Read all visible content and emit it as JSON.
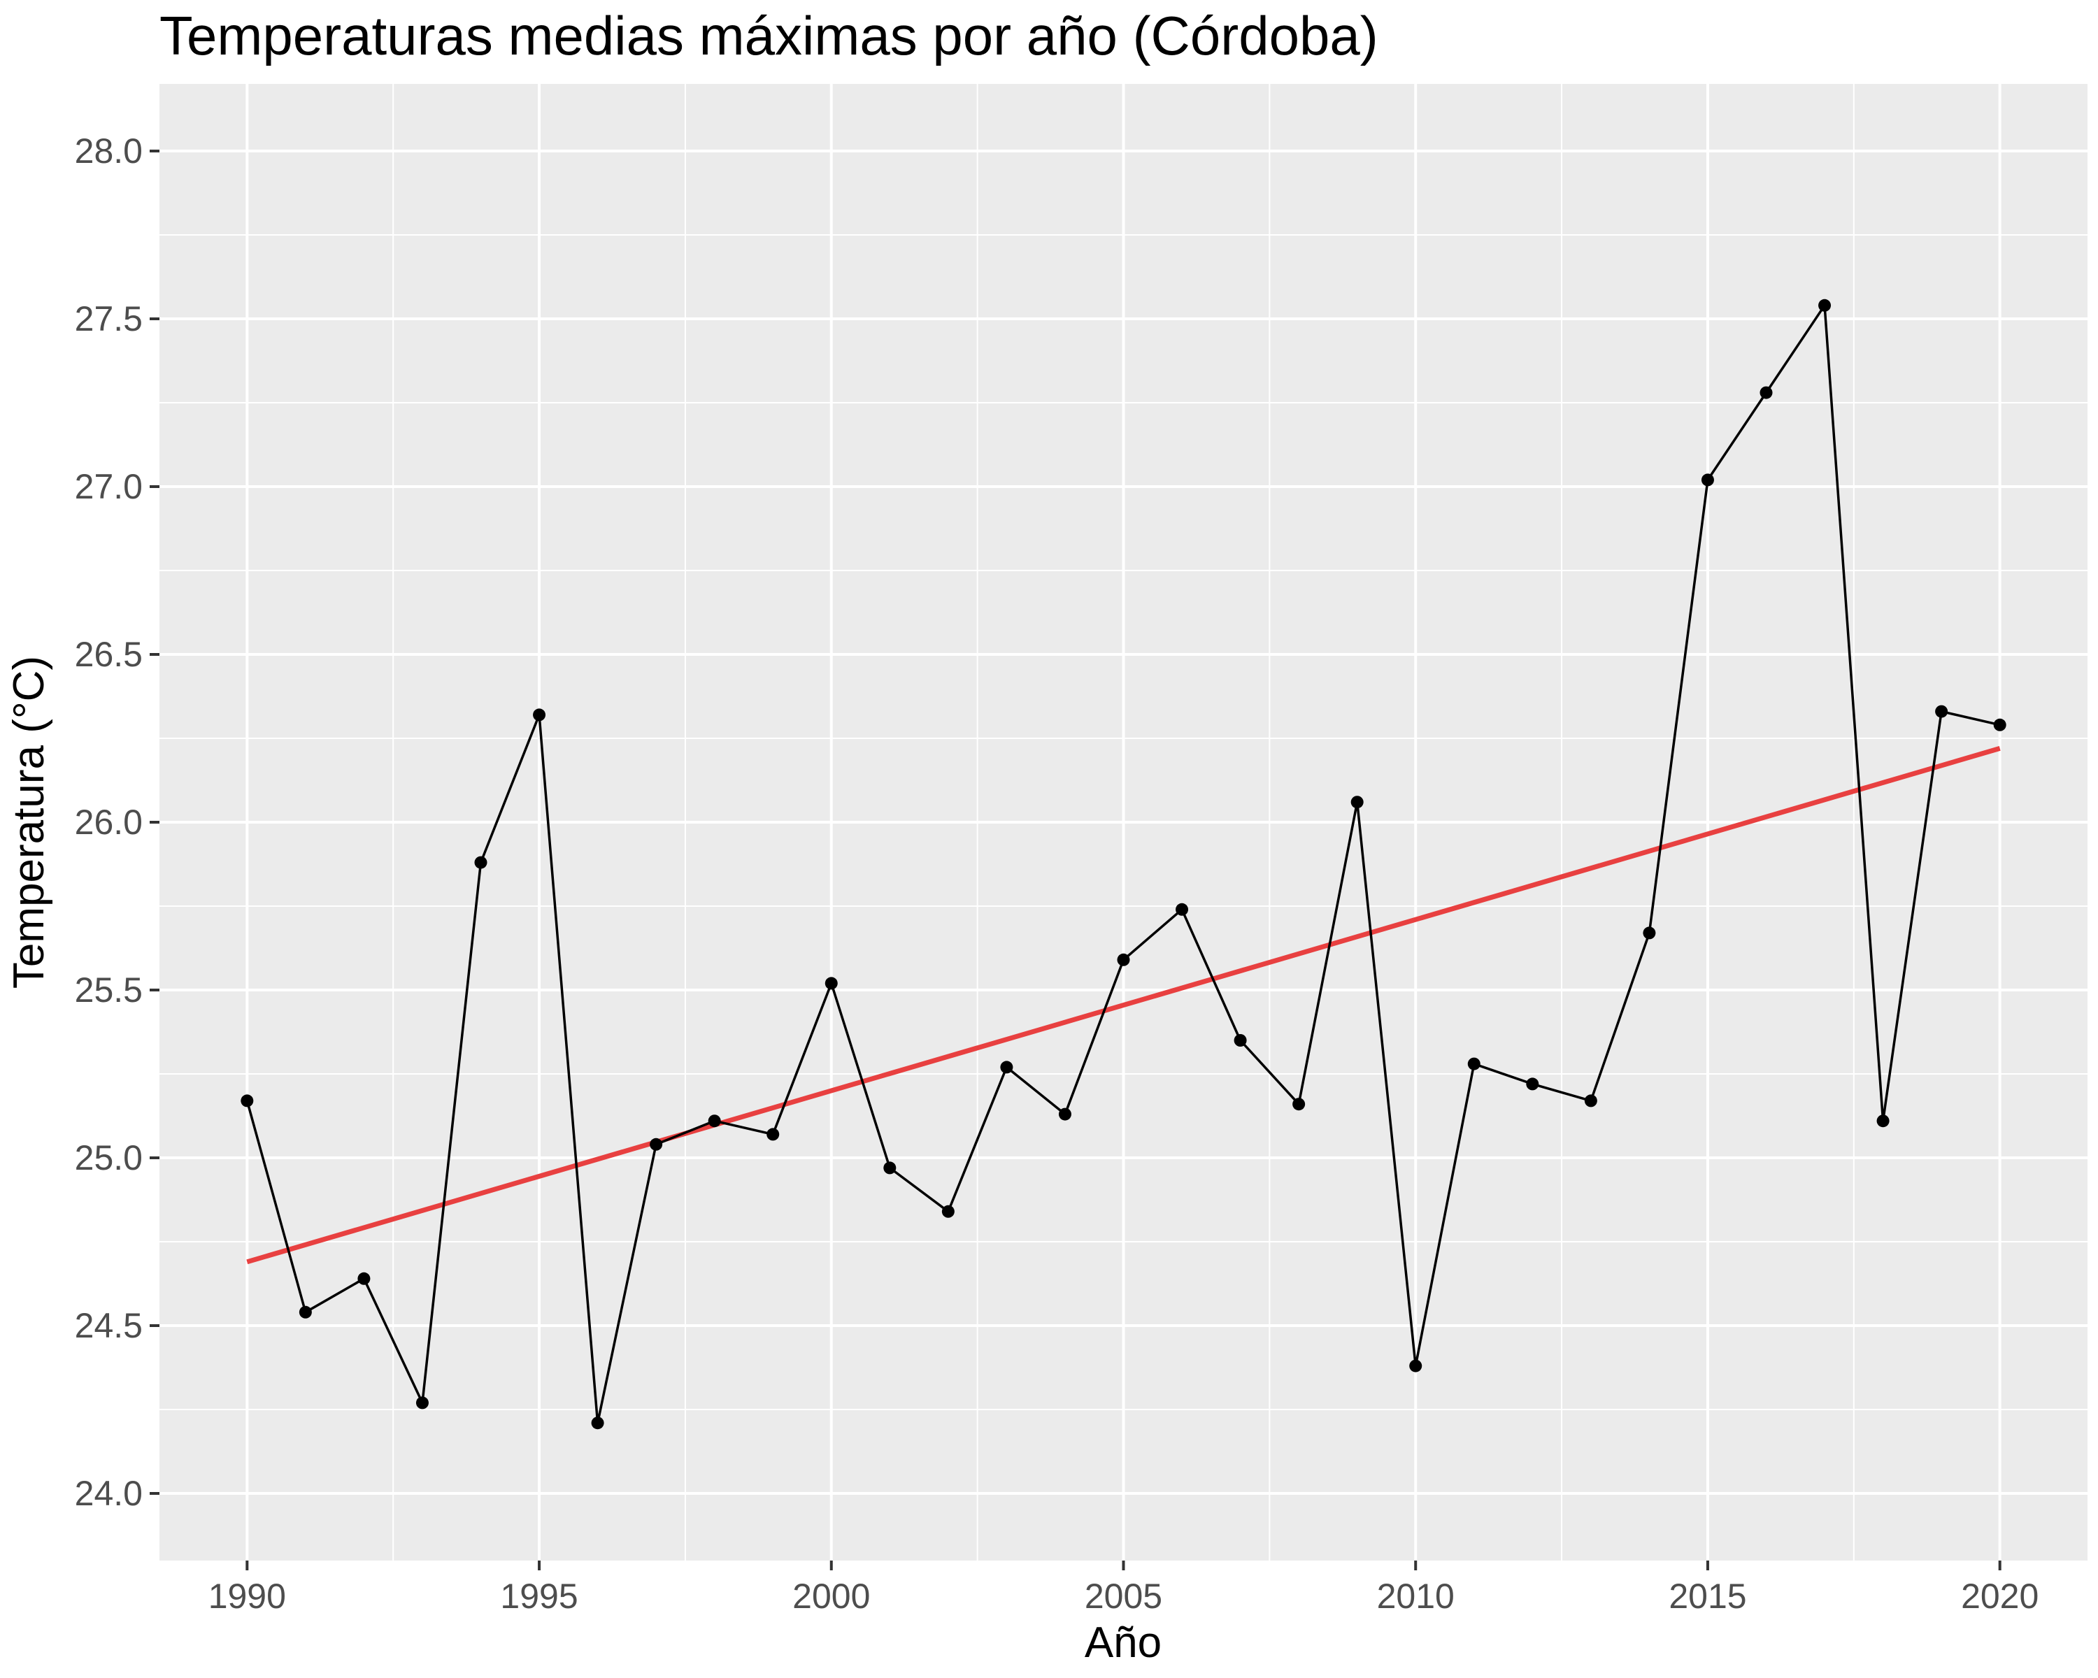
{
  "chart_data": {
    "type": "line",
    "title": "Temperaturas medias máximas por año (Córdoba)",
    "xlabel": "Año",
    "ylabel": "Temperatura (°C)",
    "xlim": [
      1988.5,
      2021.5
    ],
    "ylim": [
      23.8,
      28.2
    ],
    "x_ticks": [
      1990,
      1995,
      2000,
      2005,
      2010,
      2015,
      2020
    ],
    "x_tick_labels": [
      "1990",
      "1995",
      "2000",
      "2005",
      "2010",
      "2015",
      "2020"
    ],
    "y_ticks": [
      24.0,
      24.5,
      25.0,
      25.5,
      26.0,
      26.5,
      27.0,
      27.5,
      28.0
    ],
    "y_tick_labels": [
      "24.0",
      "24.5",
      "25.0",
      "25.5",
      "26.0",
      "26.5",
      "27.0",
      "27.5",
      "28.0"
    ],
    "grid": true,
    "panel_background": "#ebebeb",
    "series": [
      {
        "type": "line+points",
        "color": "#000000",
        "x": [
          1990,
          1991,
          1992,
          1993,
          1994,
          1995,
          1996,
          1997,
          1998,
          1999,
          2000,
          2001,
          2002,
          2003,
          2004,
          2005,
          2006,
          2007,
          2008,
          2009,
          2010,
          2011,
          2012,
          2013,
          2014,
          2015,
          2016,
          2017,
          2018,
          2019,
          2020
        ],
        "y": [
          25.17,
          24.54,
          24.64,
          24.27,
          25.88,
          26.32,
          24.21,
          25.04,
          25.11,
          25.07,
          25.52,
          24.97,
          24.84,
          25.27,
          25.13,
          25.59,
          25.74,
          25.35,
          25.16,
          26.06,
          24.38,
          25.28,
          25.22,
          25.17,
          25.67,
          27.02,
          27.28,
          27.54,
          25.11,
          26.33,
          26.29
        ]
      },
      {
        "type": "trend",
        "color": "#e84040",
        "x": [
          1990,
          2020
        ],
        "y": [
          24.69,
          26.22
        ]
      }
    ]
  }
}
